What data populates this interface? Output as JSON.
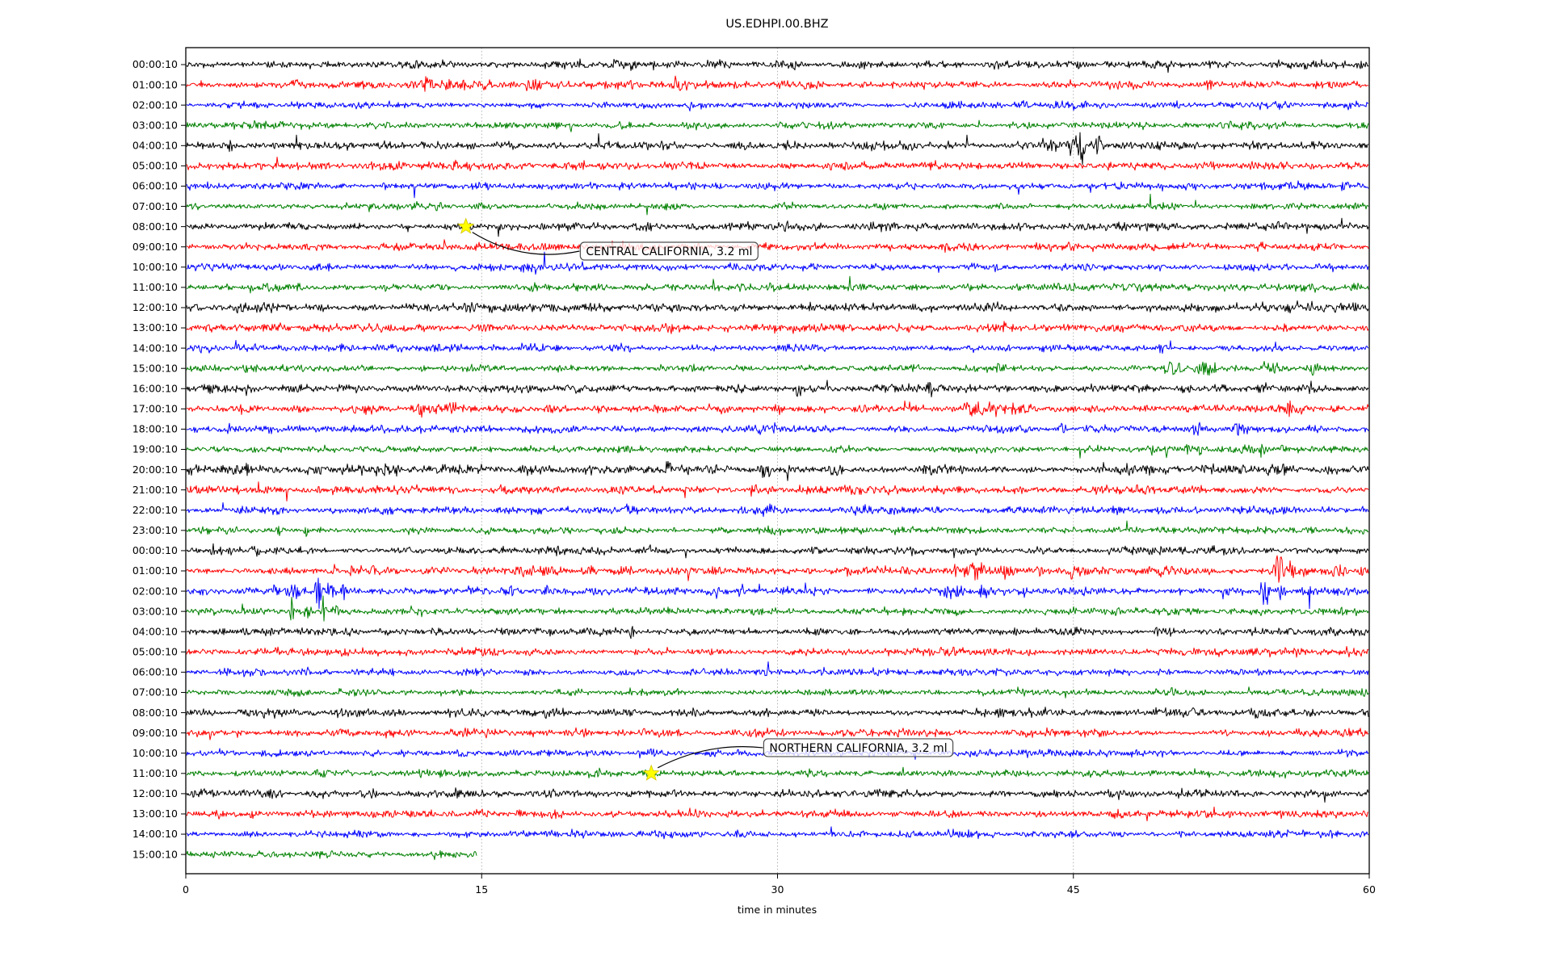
{
  "figure": {
    "background": "#ffffff"
  },
  "chart_data": {
    "type": "line",
    "subtype": "helicorder-dayplot",
    "title": "US.EDHPI.00.BHZ",
    "xlabel": "time in minutes",
    "xticks": [
      0,
      15,
      30,
      45,
      60
    ],
    "xlim": [
      0,
      60
    ],
    "minutes_per_row": 60,
    "grid": {
      "vertical_dashed_at": [
        15,
        30,
        45
      ],
      "color": "#a8a8a8"
    },
    "trace_color_cycle": [
      "#000000",
      "#ff0000",
      "#0000ff",
      "#008000"
    ],
    "marker_style": {
      "shape": "star",
      "fill": "#ffff00",
      "edge": "#d4c500"
    },
    "rows": [
      {
        "label": "00:00:10",
        "amp": 1.15,
        "events": [
          [
            22.6,
            0.12,
            12
          ],
          [
            23.7,
            0.12,
            10
          ],
          [
            34.3,
            0.2,
            6
          ]
        ]
      },
      {
        "label": "01:00:10",
        "amp": 1.15,
        "events": [
          [
            5.6,
            0.15,
            8
          ],
          [
            12.3,
            0.4,
            10
          ],
          [
            13.2,
            0.25,
            8
          ],
          [
            17.6,
            0.5,
            8
          ],
          [
            24.9,
            0.25,
            12
          ],
          [
            25.5,
            0.2,
            7
          ],
          [
            51.9,
            0.3,
            7
          ]
        ]
      },
      {
        "label": "02:00:10",
        "amp": 1.0,
        "events": [
          [
            25.5,
            0.1,
            14
          ]
        ]
      },
      {
        "label": "03:00:10",
        "amp": 1.0,
        "events": []
      },
      {
        "label": "04:00:10",
        "amp": 1.15,
        "events": [
          [
            2.3,
            0.15,
            7
          ],
          [
            12.0,
            0.3,
            5
          ],
          [
            43.9,
            0.5,
            7
          ],
          [
            45.0,
            0.5,
            12
          ],
          [
            45.4,
            0.15,
            19
          ],
          [
            46.3,
            0.3,
            7
          ]
        ]
      },
      {
        "label": "05:00:10",
        "amp": 1.1,
        "events": [
          [
            20.0,
            0.3,
            5
          ]
        ]
      },
      {
        "label": "06:00:10",
        "amp": 1.0,
        "events": []
      },
      {
        "label": "07:00:10",
        "amp": 0.95,
        "events": []
      },
      {
        "label": "08:00:10",
        "amp": 1.1,
        "events": []
      },
      {
        "label": "09:00:10",
        "amp": 1.1,
        "events": []
      },
      {
        "label": "10:00:10",
        "amp": 1.0,
        "events": [
          [
            41.0,
            0.15,
            5
          ]
        ]
      },
      {
        "label": "11:00:10",
        "amp": 1.0,
        "events": [
          [
            3.3,
            0.2,
            4
          ]
        ]
      },
      {
        "label": "12:00:10",
        "amp": 1.25,
        "events": []
      },
      {
        "label": "13:00:10",
        "amp": 1.15,
        "events": [
          [
            41.5,
            0.3,
            5
          ],
          [
            51.0,
            0.3,
            5
          ]
        ]
      },
      {
        "label": "14:00:10",
        "amp": 1.0,
        "events": [
          [
            39.8,
            0.3,
            5
          ],
          [
            49.5,
            0.25,
            6
          ]
        ]
      },
      {
        "label": "15:00:10",
        "amp": 1.0,
        "events": [
          [
            12.0,
            0.3,
            4
          ],
          [
            41.2,
            0.3,
            6
          ],
          [
            50.0,
            0.7,
            8
          ],
          [
            50.4,
            0.12,
            19
          ],
          [
            51.6,
            0.7,
            8
          ],
          [
            54.6,
            0.15,
            10
          ],
          [
            55.2,
            0.3,
            7
          ],
          [
            57.2,
            0.3,
            7
          ]
        ]
      },
      {
        "label": "16:00:10",
        "amp": 1.15,
        "events": [
          [
            1.2,
            0.15,
            8
          ],
          [
            3.0,
            0.15,
            6
          ],
          [
            31.1,
            0.25,
            9
          ],
          [
            37.8,
            0.2,
            6
          ],
          [
            47.1,
            0.2,
            6
          ],
          [
            54.6,
            0.3,
            7
          ]
        ]
      },
      {
        "label": "17:00:10",
        "amp": 1.25,
        "events": [
          [
            11.9,
            0.4,
            6
          ],
          [
            13.5,
            0.3,
            5
          ],
          [
            30.0,
            0.3,
            5
          ],
          [
            39.8,
            0.5,
            8
          ],
          [
            40.9,
            0.3,
            7
          ],
          [
            55.9,
            0.2,
            8
          ],
          [
            56.6,
            0.3,
            6
          ]
        ]
      },
      {
        "label": "18:00:10",
        "amp": 1.0,
        "events": [
          [
            2.2,
            0.15,
            8
          ],
          [
            30.0,
            0.3,
            5
          ],
          [
            44.4,
            0.25,
            8
          ],
          [
            51.3,
            0.3,
            6
          ],
          [
            53.4,
            0.35,
            8
          ],
          [
            57.5,
            0.2,
            5
          ]
        ]
      },
      {
        "label": "19:00:10",
        "amp": 1.0,
        "events": [
          [
            10.5,
            0.25,
            5
          ],
          [
            49.0,
            0.2,
            7
          ],
          [
            49.8,
            0.2,
            6
          ],
          [
            50.8,
            0.2,
            7
          ],
          [
            51.5,
            0.2,
            7
          ],
          [
            54.6,
            0.15,
            11
          ],
          [
            55.6,
            0.2,
            7
          ]
        ]
      },
      {
        "label": "20:00:10",
        "amp": 1.25,
        "events": [
          [
            20.3,
            0.2,
            6
          ],
          [
            24.5,
            0.25,
            9
          ],
          [
            29.3,
            0.3,
            8
          ],
          [
            30.5,
            0.12,
            13
          ],
          [
            47.8,
            0.5,
            7
          ],
          [
            48.7,
            0.3,
            6
          ]
        ]
      },
      {
        "label": "21:00:10",
        "amp": 1.15,
        "events": [
          [
            23.8,
            0.2,
            5
          ],
          [
            28.8,
            0.2,
            10
          ],
          [
            31.5,
            0.2,
            5
          ]
        ]
      },
      {
        "label": "22:00:10",
        "amp": 1.0,
        "events": [
          [
            18.0,
            0.25,
            5
          ],
          [
            22.6,
            0.3,
            6
          ],
          [
            29.4,
            0.5,
            7
          ],
          [
            34.4,
            0.12,
            7
          ],
          [
            35.8,
            0.25,
            5
          ]
        ]
      },
      {
        "label": "23:00:10",
        "amp": 1.0,
        "events": [
          [
            4.8,
            0.25,
            6
          ],
          [
            6.1,
            0.12,
            8
          ]
        ]
      },
      {
        "label": "00:00:10",
        "amp": 1.15,
        "events": [
          [
            1.4,
            0.12,
            10
          ],
          [
            3.6,
            0.25,
            6
          ],
          [
            4.6,
            0.15,
            7
          ],
          [
            18.0,
            0.2,
            4
          ]
        ]
      },
      {
        "label": "01:00:10",
        "amp": 1.2,
        "events": [
          [
            20.5,
            0.3,
            6
          ],
          [
            25.4,
            0.2,
            8
          ],
          [
            33.5,
            0.25,
            6
          ],
          [
            36.5,
            0.3,
            7
          ],
          [
            40.0,
            0.7,
            10
          ],
          [
            41.5,
            0.4,
            9
          ],
          [
            43.3,
            0.25,
            8
          ],
          [
            44.9,
            0.15,
            11
          ],
          [
            55.4,
            0.25,
            21
          ],
          [
            56.1,
            0.2,
            10
          ],
          [
            58.5,
            0.35,
            8
          ],
          [
            59.6,
            0.15,
            7
          ]
        ]
      },
      {
        "label": "02:00:10",
        "amp": 1.1,
        "events": [
          [
            4.5,
            0.3,
            8
          ],
          [
            5.5,
            0.45,
            9
          ],
          [
            6.7,
            0.15,
            25
          ],
          [
            7.3,
            0.25,
            11
          ],
          [
            8.0,
            0.2,
            9
          ],
          [
            14.5,
            0.35,
            6
          ],
          [
            18.3,
            0.25,
            7
          ],
          [
            28.2,
            0.25,
            7
          ],
          [
            30.5,
            0.25,
            5
          ],
          [
            38.9,
            0.7,
            8
          ],
          [
            40.5,
            0.4,
            7
          ],
          [
            42.5,
            0.2,
            5
          ],
          [
            54.7,
            0.2,
            23
          ],
          [
            55.5,
            0.3,
            9
          ]
        ]
      },
      {
        "label": "03:00:10",
        "amp": 1.0,
        "events": [
          [
            5.4,
            0.12,
            21
          ],
          [
            6.2,
            0.25,
            7
          ],
          [
            7.0,
            0.12,
            19
          ],
          [
            7.6,
            0.2,
            7
          ]
        ]
      },
      {
        "label": "04:00:10",
        "amp": 1.1,
        "events": [
          [
            16.3,
            0.15,
            5
          ],
          [
            22.6,
            0.15,
            7
          ]
        ]
      },
      {
        "label": "05:00:10",
        "amp": 1.1,
        "events": []
      },
      {
        "label": "06:00:10",
        "amp": 0.95,
        "events": []
      },
      {
        "label": "07:00:10",
        "amp": 0.95,
        "events": []
      },
      {
        "label": "08:00:10",
        "amp": 1.2,
        "events": []
      },
      {
        "label": "09:00:10",
        "amp": 1.1,
        "events": []
      },
      {
        "label": "10:00:10",
        "amp": 0.95,
        "events": []
      },
      {
        "label": "11:00:10",
        "amp": 1.0,
        "events": []
      },
      {
        "label": "12:00:10",
        "amp": 1.15,
        "events": []
      },
      {
        "label": "13:00:10",
        "amp": 1.15,
        "events": [
          [
            1.5,
            0.5,
            4
          ]
        ]
      },
      {
        "label": "14:00:10",
        "amp": 1.0,
        "events": []
      },
      {
        "label": "15:00:10",
        "amp": 1.0,
        "end_minute": 14.8,
        "events": []
      }
    ],
    "annotations": [
      {
        "text": "CENTRAL CALIFORNIA, 3.2 ml",
        "row_index": 8,
        "minute": 14.2,
        "label_box_minute": 20.0,
        "label_box_row": 9.21,
        "arrow_curve": 0.2
      },
      {
        "text": "NORTHERN CALIFORNIA, 3.2 ml",
        "row_index": 35,
        "minute": 23.6,
        "label_box_minute": 29.3,
        "label_box_row": 33.73,
        "arrow_curve": -0.15
      }
    ]
  }
}
